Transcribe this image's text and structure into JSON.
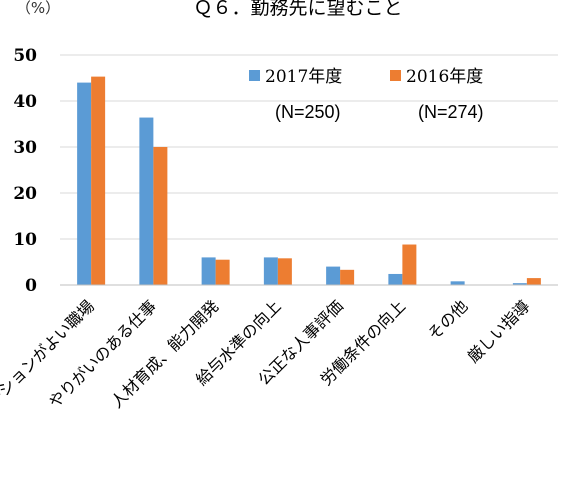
{
  "chart_data": {
    "type": "bar",
    "title": "Ｑ６．勤務先に望むこと",
    "ylabel": "（%）",
    "ylim": [
      0,
      50
    ],
    "yticks": [
      0,
      10,
      20,
      30,
      40,
      50
    ],
    "grid": true,
    "legend_position": "top-right",
    "categories": [
      "コミュニケーションがよい職場",
      "やりがいのある仕事",
      "人材育成、能力開発",
      "給与水準の向上",
      "公正な人事評価",
      "労働条件の向上",
      "その他",
      "厳しい指導"
    ],
    "series": [
      {
        "name": "2017年度",
        "n_label": "(N=250)",
        "color": "#5b9bd5",
        "values": [
          44,
          36.4,
          6,
          6,
          4,
          2.4,
          0.8,
          0.4
        ]
      },
      {
        "name": "2016年度",
        "n_label": "(N=274)",
        "color": "#ed7d31",
        "values": [
          45.3,
          30,
          5.5,
          5.8,
          3.3,
          8.8,
          0,
          1.5
        ]
      }
    ]
  }
}
